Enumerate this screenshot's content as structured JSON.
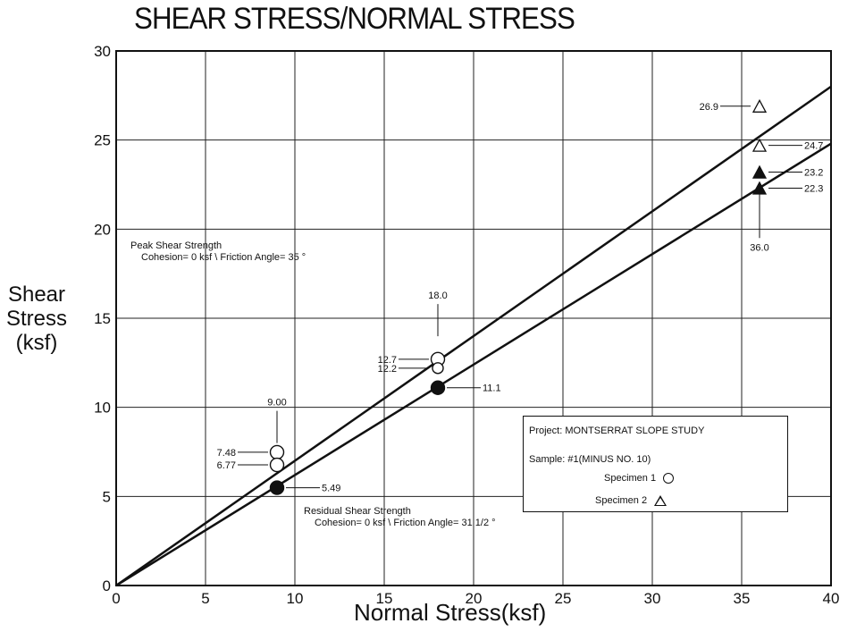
{
  "chart_data": {
    "type": "scatter",
    "title": "SHEAR STRESS/NORMAL STRESS",
    "xlabel": "Normal Stress(ksf)",
    "ylabel": [
      "Shear",
      "Stress",
      "(ksf)"
    ],
    "xlim": [
      0,
      40
    ],
    "ylim": [
      0,
      30
    ],
    "x_ticks": [
      0,
      5,
      10,
      15,
      20,
      25,
      30,
      35,
      40
    ],
    "y_ticks": [
      0,
      5,
      10,
      15,
      20,
      25,
      30
    ],
    "x_tick_labels": [
      "0",
      "5",
      "10",
      "15",
      "20",
      "25",
      "30",
      "35",
      "40"
    ],
    "y_tick_labels": [
      "0",
      "5",
      "10",
      "15",
      "20",
      "25",
      "30"
    ],
    "grid": true,
    "series": [
      {
        "name": "Specimen 1",
        "marker": "circle",
        "fill": "open",
        "x": [
          9.0,
          9.0,
          18.0
        ],
        "y": [
          7.48,
          6.77,
          12.7
        ]
      },
      {
        "name": "Specimen 1",
        "marker": "circle",
        "fill": "open-small",
        "x": [
          18.0
        ],
        "y": [
          12.2
        ]
      },
      {
        "marker": "circle",
        "fill": "solid",
        "x": [
          9.0,
          18.0
        ],
        "y": [
          5.49,
          11.1
        ]
      },
      {
        "name": "Specimen 2",
        "marker": "triangle",
        "fill": "open",
        "x": [
          36.0,
          36.0
        ],
        "y": [
          26.9,
          24.7
        ]
      },
      {
        "marker": "triangle",
        "fill": "solid",
        "x": [
          36.0,
          36.0
        ],
        "y": [
          23.2,
          22.3
        ]
      }
    ],
    "lines": [
      {
        "label": "Peak Shear Strength",
        "x": [
          0,
          40
        ],
        "y": [
          0,
          28.0
        ]
      },
      {
        "label": "Residual Shear Strength",
        "x": [
          0,
          40
        ],
        "y": [
          0,
          24.8
        ]
      }
    ],
    "annotations": [
      {
        "text": "26.9",
        "x": 36.0,
        "y": 26.9,
        "side": "left"
      },
      {
        "text": "24.7",
        "x": 36.0,
        "y": 24.7,
        "side": "right"
      },
      {
        "text": "23.2",
        "x": 36.0,
        "y": 23.2,
        "side": "right"
      },
      {
        "text": "22.3",
        "x": 36.0,
        "y": 22.3,
        "side": "right"
      },
      {
        "text": "36.0",
        "x": 36.0,
        "y": 19.0,
        "side": "below"
      },
      {
        "text": "18.0",
        "x": 18.0,
        "y": 16.0,
        "side": "above"
      },
      {
        "text": "12.7",
        "x": 18.0,
        "y": 12.7,
        "side": "left"
      },
      {
        "text": "12.2",
        "x": 18.0,
        "y": 12.2,
        "side": "left"
      },
      {
        "text": "11.1",
        "x": 18.0,
        "y": 11.1,
        "side": "right"
      },
      {
        "text": "9.00",
        "x": 9.0,
        "y": 10.0,
        "side": "above"
      },
      {
        "text": "7.48",
        "x": 9.0,
        "y": 7.48,
        "side": "left"
      },
      {
        "text": "6.77",
        "x": 9.0,
        "y": 6.77,
        "side": "left"
      },
      {
        "text": "5.49",
        "x": 9.0,
        "y": 5.49,
        "side": "right"
      }
    ],
    "notes": {
      "peak": [
        "Peak Shear Strength",
        "Cohesion= 0  ksf \\ Friction Angle= 35 °"
      ],
      "residual": [
        "Residual Shear Strength",
        "Cohesion= 0  ksf \\ Friction Angle= 31 1/2 °"
      ]
    },
    "legend": {
      "project": "Project:  MONTSERRAT SLOPE STUDY",
      "sample": "Sample:  #1(MINUS NO. 10)",
      "specimen1": "Specimen 1",
      "specimen2": "Specimen 2",
      "placement": "bottom-right"
    }
  }
}
